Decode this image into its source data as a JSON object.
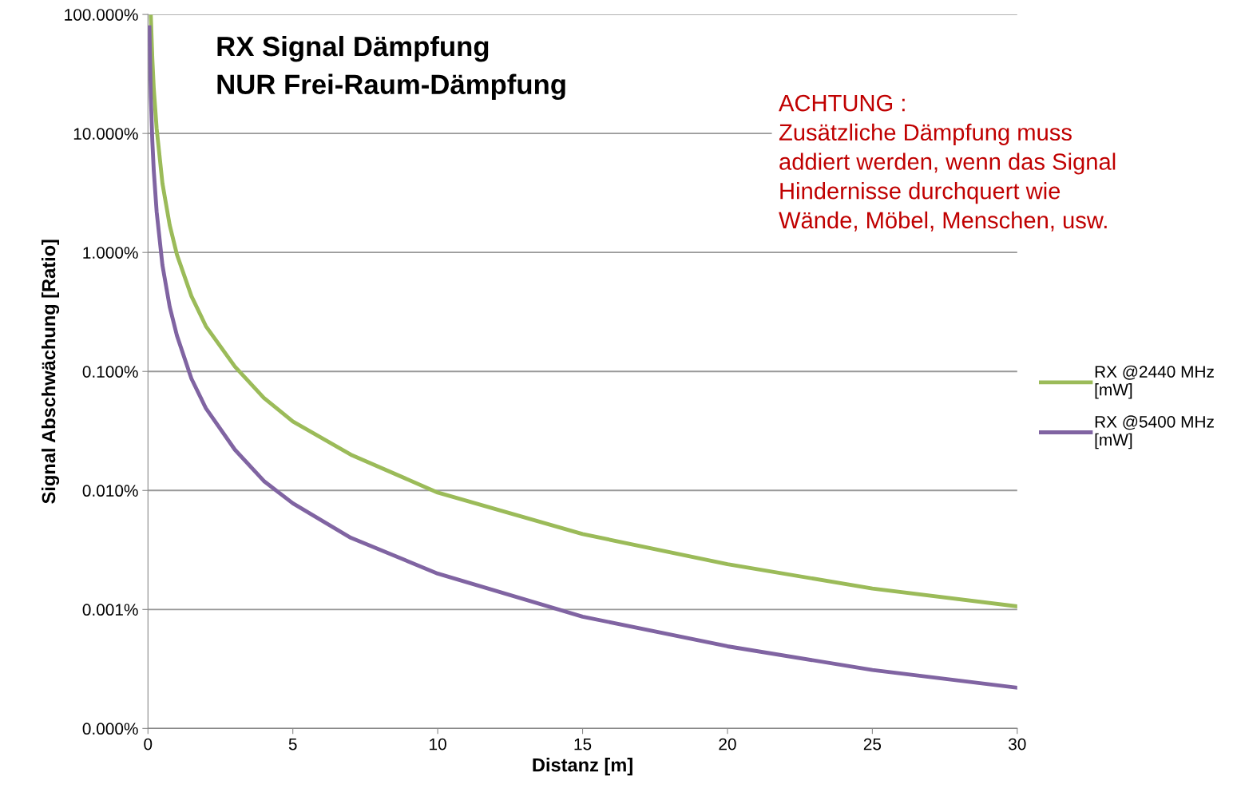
{
  "chart_data": {
    "type": "line",
    "title": "RX Signal Dämpfung\nNUR Frei-Raum-Dämpfung",
    "xlabel": "Distanz [m]",
    "ylabel": "Signal Abschwächung [Ratio]",
    "annotations": [
      "ACHTUNG :\nZusätzliche Dämpfung muss\naddiert werden, wenn das Signal\nHindernisse durchquert wie\nWände, Möbel, Menschen, usw."
    ],
    "series": [
      {
        "name": "RX @2440 MHz\n[mW]",
        "color": "#9bbb59",
        "x": [
          0.1,
          0.15,
          0.2,
          0.3,
          0.5,
          0.75,
          1,
          1.5,
          2,
          3,
          4,
          5,
          7,
          10,
          15,
          20,
          25,
          30
        ],
        "values": [
          96,
          43,
          24,
          11,
          3.8,
          1.7,
          0.96,
          0.43,
          0.24,
          0.11,
          0.06,
          0.038,
          0.02,
          0.0096,
          0.0043,
          0.0024,
          0.0015,
          0.00106
        ]
      },
      {
        "name": "RX @5400 MHz\n[mW]",
        "color": "#8064a2",
        "x": [
          0.05,
          0.1,
          0.15,
          0.2,
          0.3,
          0.5,
          0.75,
          1,
          1.5,
          2,
          3,
          4,
          5,
          7,
          10,
          15,
          20,
          25,
          30
        ],
        "values": [
          78,
          20,
          8.7,
          4.9,
          2.2,
          0.78,
          0.35,
          0.2,
          0.087,
          0.049,
          0.022,
          0.012,
          0.0078,
          0.004,
          0.002,
          0.00087,
          0.00049,
          0.00031,
          0.00022
        ]
      }
    ],
    "log": "y",
    "xlim": [
      0,
      30
    ],
    "xticks": [
      0,
      5,
      10,
      15,
      20,
      25,
      30
    ],
    "ylim": [
      0.0001,
      100
    ],
    "yticks": [
      {
        "value": 0.0001,
        "label": "0.000%"
      },
      {
        "value": 0.001,
        "label": "0.001%"
      },
      {
        "value": 0.01,
        "label": "0.010%"
      },
      {
        "value": 0.1,
        "label": "0.100%"
      },
      {
        "value": 1,
        "label": "1.000%"
      },
      {
        "value": 10,
        "label": "10.000%"
      },
      {
        "value": 100,
        "label": "100.000%"
      }
    ],
    "grid": "y",
    "legend": "right",
    "marker": "none",
    "line_style": "solid"
  }
}
